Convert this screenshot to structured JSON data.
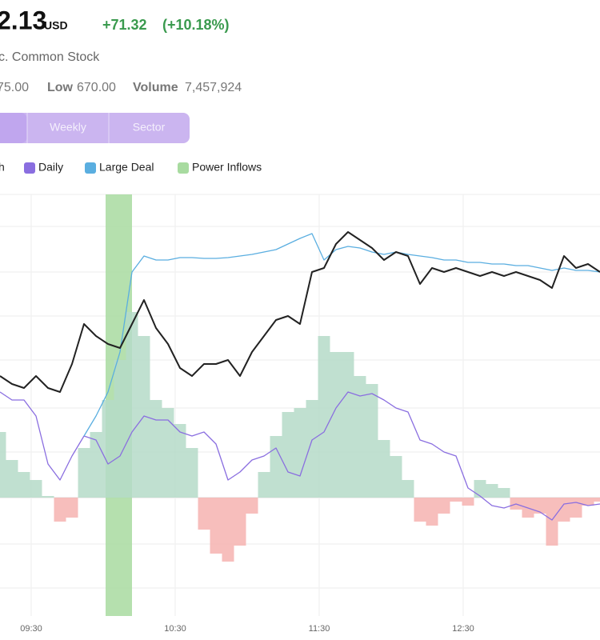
{
  "header": {
    "price": "2.13",
    "currency": "USD",
    "change": "+71.32",
    "change_pct": "(+10.18%)",
    "name": "c. Common Stock",
    "stats": {
      "high": "75.00",
      "low_label": "Low",
      "low": "670.00",
      "volume_label": "Volume",
      "volume": "7,457,924"
    },
    "tabs": [
      "Weekly",
      "Sector"
    ]
  },
  "chart_data": {
    "type": "line",
    "x": [
      -13,
      -8,
      -3,
      2,
      7,
      12,
      17,
      22,
      27,
      32,
      37,
      42,
      47,
      52,
      57,
      62,
      67,
      72,
      77,
      82,
      87,
      92,
      97,
      102,
      107,
      112,
      117,
      122,
      127,
      132,
      137,
      142,
      147,
      152,
      157,
      162,
      167,
      172,
      177,
      182,
      187,
      192,
      197,
      202,
      207,
      212,
      217,
      222,
      227,
      232,
      237
    ],
    "xlim": [
      -13,
      237
    ],
    "xticks": [
      {
        "value": 0,
        "label": "09:30"
      },
      {
        "value": 60,
        "label": "10:30"
      },
      {
        "value": 120,
        "label": "11:30"
      },
      {
        "value": 180,
        "label": "12:30"
      }
    ],
    "ylim": [
      -148,
      379
    ],
    "yticks": [
      -113,
      -58,
      0,
      57,
      112,
      172,
      227,
      282,
      339
    ],
    "grid": true,
    "series": [
      {
        "name": "h",
        "color": "#222222",
        "values": [
          152,
          142,
          137,
          152,
          137,
          132,
          167,
          217,
          202,
          192,
          187,
          217,
          247,
          212,
          192,
          162,
          152,
          167,
          167,
          172,
          152,
          182,
          202,
          222,
          227,
          217,
          282,
          287,
          317,
          332,
          322,
          312,
          297,
          307,
          302,
          267,
          287,
          282,
          287,
          282,
          277,
          282,
          277,
          282,
          277,
          272,
          262,
          302,
          287,
          292,
          282
        ]
      },
      {
        "name": "Daily",
        "color": "#8a6ee0",
        "values": [
          132,
          122,
          122,
          102,
          42,
          22,
          52,
          77,
          72,
          42,
          52,
          82,
          102,
          97,
          97,
          82,
          77,
          82,
          67,
          22,
          32,
          47,
          52,
          62,
          32,
          27,
          72,
          82,
          112,
          132,
          127,
          130,
          122,
          112,
          107,
          72,
          67,
          57,
          52,
          12,
          2,
          -10,
          -13,
          -8,
          -13,
          -18,
          -28,
          -8,
          -6,
          -10,
          -8
        ]
      },
      {
        "name": "Large Deal",
        "color": "#5aaee0",
        "values": [
          null,
          null,
          null,
          null,
          null,
          null,
          null,
          77,
          102,
          132,
          182,
          282,
          302,
          297,
          297,
          300,
          300,
          299,
          299,
          300,
          302,
          304,
          307,
          310,
          317,
          324,
          330,
          297,
          310,
          314,
          312,
          307,
          304,
          307,
          304,
          302,
          300,
          297,
          297,
          294,
          294,
          292,
          292,
          290,
          290,
          287,
          284,
          287,
          284,
          284,
          282
        ]
      },
      {
        "name": "Power Inflows",
        "color": "#a8dba0",
        "ranges": [
          [
            31,
            42
          ]
        ]
      }
    ],
    "bars": {
      "color": "#b5dbc8",
      "negative_color": "#f6b3b0",
      "values": [
        82,
        47,
        32,
        22,
        2,
        -30,
        -25,
        62,
        82,
        122,
        172,
        232,
        202,
        122,
        112,
        92,
        62,
        -40,
        -70,
        -80,
        -60,
        -20,
        32,
        77,
        107,
        112,
        122,
        202,
        182,
        182,
        152,
        142,
        72,
        52,
        22,
        -30,
        -35,
        -20,
        -5,
        -10,
        22,
        17,
        12,
        -15,
        -25,
        -20,
        -60,
        -30,
        -25,
        -10,
        -5
      ]
    }
  }
}
